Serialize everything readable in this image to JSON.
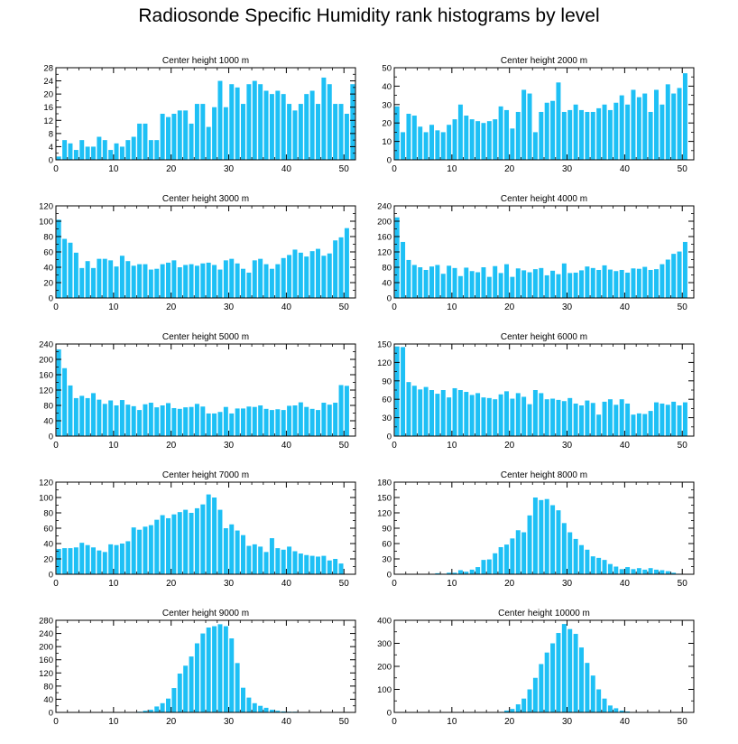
{
  "title": "Radiosonde Specific Humidity rank histograms by level",
  "colors": {
    "bar": "#1ec0f5",
    "frame": "#000000"
  },
  "chart_data": [
    {
      "type": "bar",
      "title": "Center height 1000 m",
      "xlim": [
        0,
        52
      ],
      "ylim": [
        0,
        28
      ],
      "xticks": [
        0,
        10,
        20,
        30,
        40,
        50
      ],
      "yticks": [
        0,
        4,
        8,
        12,
        16,
        20,
        24,
        28
      ],
      "values": [
        1,
        6,
        5,
        3,
        6,
        4,
        4,
        7,
        6,
        3,
        5,
        4,
        6,
        7,
        11,
        11,
        6,
        6,
        14,
        13,
        14,
        15,
        15,
        11,
        17,
        17,
        10,
        16,
        24,
        16,
        23,
        22,
        17,
        23,
        24,
        23,
        21,
        20,
        21,
        20,
        17,
        15,
        17,
        20,
        21,
        17,
        25,
        23,
        17,
        17,
        14,
        23
      ]
    },
    {
      "type": "bar",
      "title": "Center height 2000 m",
      "xlim": [
        0,
        52
      ],
      "ylim": [
        0,
        50
      ],
      "xticks": [
        0,
        10,
        20,
        30,
        40,
        50
      ],
      "yticks": [
        0,
        10,
        20,
        30,
        40,
        50
      ],
      "values": [
        29,
        15,
        25,
        24,
        18,
        15,
        19,
        16,
        15,
        19,
        22,
        30,
        24,
        22,
        21,
        20,
        21,
        22,
        29,
        27,
        17,
        26,
        38,
        36,
        15,
        26,
        31,
        32,
        42,
        26,
        27,
        30,
        27,
        26,
        26,
        28,
        30,
        27,
        31,
        35,
        30,
        38,
        34,
        36,
        26,
        38,
        30,
        41,
        36,
        39,
        47,
        0
      ]
    },
    {
      "type": "bar",
      "title": "Center height 3000 m",
      "xlim": [
        0,
        52
      ],
      "ylim": [
        0,
        120
      ],
      "xticks": [
        0,
        10,
        20,
        30,
        40,
        50
      ],
      "yticks": [
        0,
        20,
        40,
        60,
        80,
        100,
        120
      ],
      "values": [
        102,
        77,
        72,
        59,
        39,
        48,
        39,
        51,
        51,
        49,
        41,
        55,
        48,
        42,
        44,
        44,
        37,
        38,
        44,
        46,
        49,
        40,
        43,
        44,
        42,
        45,
        46,
        43,
        37,
        49,
        51,
        45,
        38,
        33,
        49,
        51,
        44,
        38,
        44,
        52,
        56,
        63,
        59,
        54,
        61,
        64,
        55,
        58,
        75,
        79,
        91,
        0
      ]
    },
    {
      "type": "bar",
      "title": "Center height 4000 m",
      "xlim": [
        0,
        52
      ],
      "ylim": [
        0,
        240
      ],
      "xticks": [
        0,
        10,
        20,
        30,
        40,
        50
      ],
      "yticks": [
        0,
        40,
        80,
        120,
        160,
        200,
        240
      ],
      "values": [
        210,
        146,
        99,
        86,
        80,
        73,
        82,
        86,
        63,
        84,
        78,
        57,
        79,
        70,
        67,
        80,
        55,
        83,
        65,
        88,
        55,
        77,
        72,
        67,
        75,
        78,
        59,
        71,
        62,
        90,
        65,
        66,
        72,
        82,
        78,
        73,
        85,
        74,
        70,
        73,
        66,
        77,
        76,
        81,
        73,
        75,
        88,
        100,
        115,
        121,
        146,
        0
      ]
    },
    {
      "type": "bar",
      "title": "Center height 5000 m",
      "xlim": [
        0,
        52
      ],
      "ylim": [
        0,
        240
      ],
      "xticks": [
        0,
        10,
        20,
        30,
        40,
        50
      ],
      "yticks": [
        0,
        40,
        80,
        120,
        160,
        200,
        240
      ],
      "values": [
        226,
        177,
        132,
        99,
        105,
        99,
        112,
        95,
        84,
        93,
        80,
        94,
        82,
        78,
        68,
        83,
        87,
        75,
        80,
        86,
        73,
        71,
        75,
        76,
        84,
        77,
        59,
        59,
        63,
        76,
        59,
        72,
        72,
        77,
        76,
        80,
        71,
        68,
        70,
        68,
        79,
        80,
        88,
        76,
        71,
        68,
        87,
        82,
        87,
        133,
        131,
        0
      ]
    },
    {
      "type": "bar",
      "title": "Center height 6000 m",
      "xlim": [
        0,
        52
      ],
      "ylim": [
        0,
        150
      ],
      "xticks": [
        0,
        10,
        20,
        30,
        40,
        50
      ],
      "yticks": [
        0,
        30,
        60,
        90,
        120,
        150
      ],
      "values": [
        146,
        145,
        88,
        82,
        76,
        80,
        75,
        69,
        75,
        63,
        78,
        75,
        72,
        67,
        70,
        63,
        62,
        60,
        68,
        73,
        61,
        70,
        64,
        52,
        75,
        70,
        60,
        61,
        59,
        57,
        62,
        53,
        50,
        58,
        54,
        35,
        56,
        60,
        51,
        60,
        53,
        35,
        37,
        36,
        41,
        55,
        53,
        51,
        56,
        50,
        55,
        0
      ]
    },
    {
      "type": "bar",
      "title": "Center height 7000 m",
      "xlim": [
        0,
        52
      ],
      "ylim": [
        0,
        120
      ],
      "xticks": [
        0,
        10,
        20,
        30,
        40,
        50
      ],
      "yticks": [
        0,
        20,
        40,
        60,
        80,
        100,
        120
      ],
      "values": [
        33,
        34,
        34,
        35,
        41,
        38,
        35,
        31,
        29,
        39,
        38,
        40,
        43,
        61,
        58,
        62,
        64,
        71,
        77,
        73,
        78,
        81,
        84,
        80,
        86,
        91,
        104,
        100,
        84,
        60,
        65,
        57,
        51,
        37,
        39,
        36,
        29,
        47,
        34,
        32,
        36,
        30,
        27,
        25,
        24,
        23,
        24,
        18,
        20,
        14,
        0,
        0
      ]
    },
    {
      "type": "bar",
      "title": "Center height 8000 m",
      "xlim": [
        0,
        52
      ],
      "ylim": [
        0,
        180
      ],
      "xticks": [
        0,
        10,
        20,
        30,
        40,
        50
      ],
      "yticks": [
        0,
        30,
        60,
        90,
        120,
        150,
        180
      ],
      "values": [
        0,
        0,
        0,
        0,
        0,
        0,
        0,
        2,
        1,
        3,
        3,
        8,
        5,
        9,
        14,
        28,
        29,
        41,
        53,
        58,
        70,
        86,
        82,
        115,
        150,
        145,
        147,
        135,
        125,
        100,
        82,
        69,
        57,
        48,
        35,
        32,
        28,
        20,
        15,
        10,
        14,
        10,
        12,
        9,
        12,
        9,
        8,
        6,
        3,
        1,
        0,
        0
      ]
    },
    {
      "type": "bar",
      "title": "Center height 9000 m",
      "xlim": [
        0,
        52
      ],
      "ylim": [
        0,
        280
      ],
      "xticks": [
        0,
        10,
        20,
        30,
        40,
        50
      ],
      "yticks": [
        0,
        40,
        80,
        120,
        160,
        200,
        240,
        280
      ],
      "values": [
        0,
        0,
        0,
        0,
        0,
        0,
        0,
        0,
        0,
        0,
        0,
        0,
        0,
        0,
        2,
        5,
        8,
        18,
        28,
        42,
        74,
        118,
        142,
        170,
        210,
        240,
        258,
        262,
        268,
        262,
        225,
        150,
        75,
        45,
        28,
        20,
        14,
        8,
        5,
        3,
        2,
        2,
        1,
        0,
        0,
        0,
        0,
        0,
        0,
        0,
        0,
        0
      ]
    },
    {
      "type": "bar",
      "title": "Center height 10000 m",
      "xlim": [
        0,
        52
      ],
      "ylim": [
        0,
        400
      ],
      "xticks": [
        0,
        10,
        20,
        30,
        40,
        50
      ],
      "yticks": [
        0,
        100,
        200,
        300,
        400
      ],
      "values": [
        0,
        0,
        0,
        0,
        0,
        0,
        0,
        0,
        0,
        0,
        0,
        0,
        0,
        0,
        0,
        0,
        0,
        0,
        2,
        8,
        15,
        35,
        60,
        100,
        150,
        210,
        260,
        300,
        345,
        384,
        362,
        341,
        282,
        215,
        160,
        100,
        60,
        30,
        18,
        8,
        4,
        2,
        0,
        0,
        0,
        0,
        0,
        0,
        0,
        0,
        0,
        0
      ]
    }
  ]
}
